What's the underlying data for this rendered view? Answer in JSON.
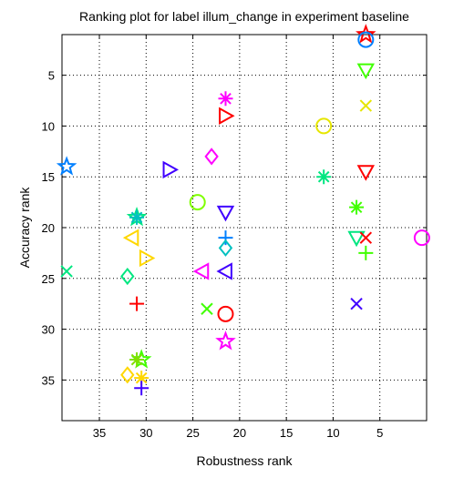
{
  "chart_data": {
    "type": "scatter",
    "title": "Ranking plot for label illum_change in experiment baseline",
    "xlabel": "Robustness rank",
    "ylabel": "Accuracy rank",
    "xlim": [
      39,
      0
    ],
    "ylim": [
      39,
      1
    ],
    "x_reversed": true,
    "y_reversed": true,
    "grid": true,
    "xticks": [
      35,
      30,
      25,
      20,
      15,
      10,
      5
    ],
    "yticks": [
      5,
      10,
      15,
      20,
      25,
      30,
      35
    ],
    "points": [
      {
        "x": 6.5,
        "y": 1.0,
        "marker": "star",
        "color": "#ff0000"
      },
      {
        "x": 6.5,
        "y": 1.5,
        "marker": "circle",
        "color": "#0080ff"
      },
      {
        "x": 6.5,
        "y": 4.5,
        "marker": "triangle-down",
        "color": "#40ff00"
      },
      {
        "x": 21.5,
        "y": 7.3,
        "marker": "asterisk",
        "color": "#ff00ff"
      },
      {
        "x": 6.5,
        "y": 8.0,
        "marker": "x",
        "color": "#e6e600"
      },
      {
        "x": 21.5,
        "y": 9.0,
        "marker": "triangle-right",
        "color": "#ff0000"
      },
      {
        "x": 11.0,
        "y": 10.0,
        "marker": "circle",
        "color": "#e6e600"
      },
      {
        "x": 23.0,
        "y": 13.0,
        "marker": "diamond",
        "color": "#ff00ff"
      },
      {
        "x": 38.5,
        "y": 14.0,
        "marker": "star",
        "color": "#0080ff"
      },
      {
        "x": 27.5,
        "y": 14.3,
        "marker": "triangle-right",
        "color": "#4000ff"
      },
      {
        "x": 6.5,
        "y": 14.5,
        "marker": "triangle-down",
        "color": "#ff0000"
      },
      {
        "x": 11.0,
        "y": 15.0,
        "marker": "asterisk",
        "color": "#00e680"
      },
      {
        "x": 24.5,
        "y": 17.5,
        "marker": "circle",
        "color": "#80ff00"
      },
      {
        "x": 7.5,
        "y": 18.0,
        "marker": "asterisk",
        "color": "#40ff00"
      },
      {
        "x": 21.5,
        "y": 18.5,
        "marker": "triangle-down",
        "color": "#4000ff"
      },
      {
        "x": 31.0,
        "y": 19.0,
        "marker": "star",
        "color": "#00e680"
      },
      {
        "x": 31.0,
        "y": 19.0,
        "marker": "asterisk",
        "color": "#00c0c0"
      },
      {
        "x": 7.5,
        "y": 21.0,
        "marker": "triangle-down",
        "color": "#00e680"
      },
      {
        "x": 6.5,
        "y": 21.0,
        "marker": "x",
        "color": "#ff0000"
      },
      {
        "x": 21.5,
        "y": 21.0,
        "marker": "plus",
        "color": "#0080ff"
      },
      {
        "x": 31.5,
        "y": 21.0,
        "marker": "triangle-left",
        "color": "#ffd700"
      },
      {
        "x": 0.5,
        "y": 21.0,
        "marker": "circle",
        "color": "#ff00ff"
      },
      {
        "x": 21.5,
        "y": 22.0,
        "marker": "diamond",
        "color": "#00c0c0"
      },
      {
        "x": 6.5,
        "y": 22.5,
        "marker": "plus",
        "color": "#40ff00"
      },
      {
        "x": 30.0,
        "y": 23.0,
        "marker": "triangle-right",
        "color": "#ffd700"
      },
      {
        "x": 24.0,
        "y": 24.3,
        "marker": "triangle-left",
        "color": "#ff00ff"
      },
      {
        "x": 21.5,
        "y": 24.3,
        "marker": "triangle-left",
        "color": "#4000ff"
      },
      {
        "x": 38.5,
        "y": 24.3,
        "marker": "x",
        "color": "#00e680"
      },
      {
        "x": 32.0,
        "y": 24.8,
        "marker": "diamond",
        "color": "#00e680"
      },
      {
        "x": 31.0,
        "y": 27.5,
        "marker": "plus",
        "color": "#ff0000"
      },
      {
        "x": 7.5,
        "y": 27.5,
        "marker": "x",
        "color": "#4000ff"
      },
      {
        "x": 23.5,
        "y": 28.0,
        "marker": "x",
        "color": "#40ff00"
      },
      {
        "x": 21.5,
        "y": 28.5,
        "marker": "circle",
        "color": "#ff0000"
      },
      {
        "x": 21.5,
        "y": 31.2,
        "marker": "star",
        "color": "#ff00ff"
      },
      {
        "x": 30.5,
        "y": 33.0,
        "marker": "star",
        "color": "#40ff00"
      },
      {
        "x": 31.0,
        "y": 33.0,
        "marker": "asterisk",
        "color": "#80e000"
      },
      {
        "x": 32.0,
        "y": 34.5,
        "marker": "diamond",
        "color": "#ffd700"
      },
      {
        "x": 30.5,
        "y": 34.8,
        "marker": "asterisk",
        "color": "#ffd700"
      },
      {
        "x": 30.5,
        "y": 35.8,
        "marker": "plus",
        "color": "#4000ff"
      }
    ]
  }
}
